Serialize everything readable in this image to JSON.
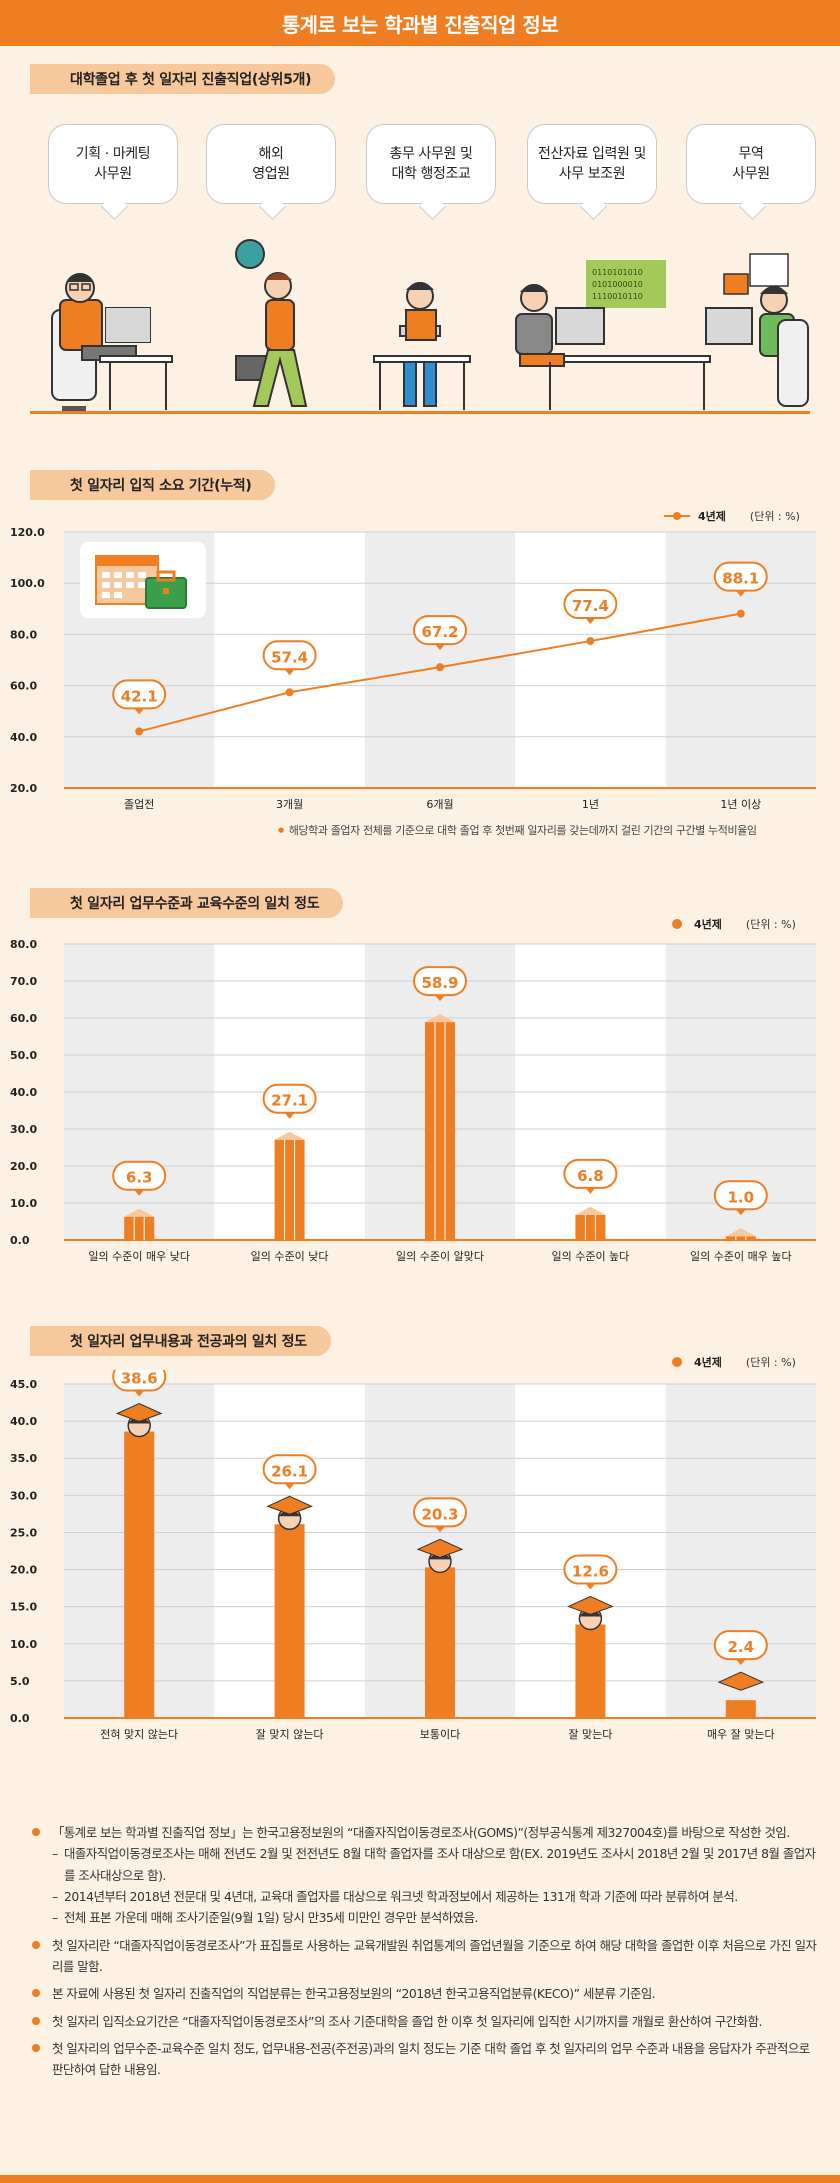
{
  "title": "통계로 보는 학과별 진출직업 정보",
  "colors": {
    "accent": "#ef7d22",
    "band": "#ededed",
    "label_bg": "#f6c89b",
    "background": "#fdf1e4"
  },
  "jobs": {
    "section_title": "대학졸업 후 첫 일자리 진출직업(상위5개)",
    "items": [
      "기획 · 마케팅\n사무원",
      "해외\n영업원",
      "총무 사무원 및\n대학 행정조교",
      "전산자료 입력원 및\n사무 보조원",
      "무역\n사무원"
    ],
    "binary_text": [
      "0110101010",
      "0101000010",
      "1110010110"
    ]
  },
  "section_titles": {
    "time": "첫 일자리 입직 소요 기간(누적)",
    "edu": "첫 일자리 업무수준과 교육수준의 일치 정도",
    "major": "첫 일자리 업무내용과 전공과의 일치 정도"
  },
  "legend": {
    "series": "4년제",
    "unit": "(단위 : %)"
  },
  "footnote": "해당학과 졸업자 전체를 기준으로 대학 졸업 후 첫번째 일자리를 갖는데까지 걸린 기간의 구간별 누적비율임",
  "chart_data": [
    {
      "type": "line",
      "title": "첫 일자리 입직 소요 기간(누적)",
      "categories": [
        "졸업전",
        "3개월",
        "6개월",
        "1년",
        "1년 이상"
      ],
      "series": [
        {
          "name": "4년제",
          "values": [
            42.1,
            57.4,
            67.2,
            77.4,
            88.1
          ]
        }
      ],
      "ylim": [
        20,
        120
      ],
      "yticks": [
        "20.0",
        "40.0",
        "60.0",
        "80.0",
        "100.0",
        "120.0"
      ],
      "unit": "(단위 : %)"
    },
    {
      "type": "bar",
      "title": "첫 일자리 업무수준과 교육수준의 일치 정도",
      "categories": [
        "일의 수준이 매우 낮다",
        "일의 수준이 낮다",
        "일의 수준이 알맞다",
        "일의 수준이 높다",
        "일의 수준이 매우 높다"
      ],
      "series": [
        {
          "name": "4년제",
          "values": [
            6.3,
            27.1,
            58.9,
            6.8,
            1.0
          ]
        }
      ],
      "ylim": [
        0,
        80
      ],
      "yticks": [
        "0.0",
        "10.0",
        "20.0",
        "30.0",
        "40.0",
        "50.0",
        "60.0",
        "70.0",
        "80.0"
      ],
      "unit": "(단위 : %)"
    },
    {
      "type": "bar",
      "title": "첫 일자리 업무내용과 전공과의 일치 정도",
      "categories": [
        "전혀 맞지 않는다",
        "잘 맞지 않는다",
        "보통이다",
        "잘 맞는다",
        "매우 잘 맞는다"
      ],
      "series": [
        {
          "name": "4년제",
          "values": [
            38.6,
            26.1,
            20.3,
            12.6,
            2.4
          ]
        }
      ],
      "ylim": [
        0,
        45
      ],
      "yticks": [
        "0.0",
        "5.0",
        "10.0",
        "15.0",
        "20.0",
        "25.0",
        "30.0",
        "35.0",
        "40.0",
        "45.0"
      ],
      "unit": "(단위 : %)"
    }
  ],
  "notes": [
    {
      "text": "「통계로 보는 학과별 진출직업 정보」는 한국고용정보원의 “대졸자직업이동경로조사(GOMS)”(정부공식통계 제327004호)를 바탕으로 작성한 것임.",
      "subs": [
        "대졸자직업이동경로조사는 매해 전년도 2월 및 전전년도 8월 대학 졸업자를 조사 대상으로 함(EX. 2019년도 조사시 2018년 2월 및 2017년 8월 졸업자를 조사대상으로 함).",
        "2014년부터 2018년 전문대 및 4년대, 교육대 졸업자를 대상으로 워크넷 학과정보에서 제공하는 131개 학과 기준에 따라 분류하여 분석.",
        "전체 표본 가운데 매해 조사기준일(9월 1일) 당시 만35세 미만인 경우만 분석하였음."
      ]
    },
    {
      "text": "첫 일자리란 “대졸자직업이동경로조사”가 표집틀로 사용하는 교육개발원 취업통계의 졸업년월을 기준으로 하여 해당 대학을 졸업한 이후 처음으로 가진 일자리를 말함.",
      "subs": []
    },
    {
      "text": "본 자료에 사용된 첫 일자리 진출직업의 직업분류는 한국고용정보원의 “2018년 한국고용직업분류(KECO)” 세분류 기준임.",
      "subs": []
    },
    {
      "text": "첫 일자리 입직소요기간은 “대졸자직업이동경로조사”의 조사 기준대학을 졸업 한 이후 첫 일자리에 입직한 시기까지를 개월로 환산하여 구간화함.",
      "subs": []
    },
    {
      "text": "첫 일자리의 업무수준-교육수준 일치 정도, 업무내용-전공(주전공)과의 일치 정도는 기준 대학 졸업 후 첫 일자리의 업무 수준과 내용을 응답자가 주관적으로 판단하여 답한 내용임.",
      "subs": []
    }
  ]
}
